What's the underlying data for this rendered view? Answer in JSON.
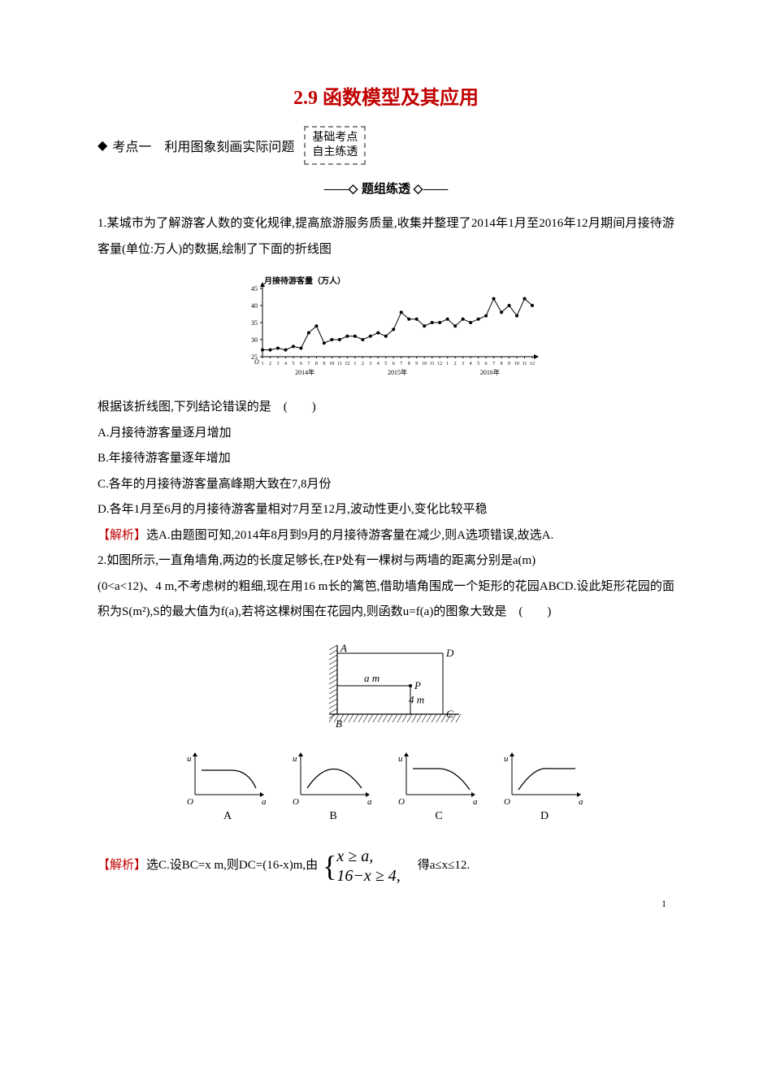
{
  "title": "2.9 函数模型及其应用",
  "section": {
    "diamond": "◆",
    "label": "考点一　利用图象刻画实际问题",
    "badge_line1": "基础考点",
    "badge_line2": "自主练透"
  },
  "separator": {
    "left": "——",
    "diamond": "◇",
    "text": " 题组练透 ",
    "right": "——"
  },
  "q1": {
    "text": "1.某城市为了解游客人数的变化规律,提高旅游服务质量,收集并整理了2014年1月至2016年12月期间月接待游客量(单位:万人)的数据,绘制了下面的折线图",
    "question": "根据该折线图,下列结论错误的是　(　　)",
    "optA": "A.月接待游客量逐月增加",
    "optB": "B.年接待游客量逐年增加",
    "optC": "C.各年的月接待游客量高峰期大致在7,8月份",
    "optD": "D.各年1月至6月的月接待游客量相对7月至12月,波动性更小,变化比较平稳",
    "answer_label": "【解析】",
    "answer": "选A.由题图可知,2014年8月到9月的月接待游客量在减少,则A选项错误,故选A."
  },
  "chart1": {
    "title": "月接待游客量（万人）",
    "y_ticks": [
      25,
      30,
      35,
      40,
      45
    ],
    "x_segments": [
      "1",
      "2",
      "3",
      "4",
      "5",
      "6",
      "7",
      "8",
      "9",
      "10",
      "11",
      "12",
      "1",
      "2",
      "3",
      "4",
      "5",
      "6",
      "7",
      "8",
      "9",
      "10",
      "11",
      "12",
      "1",
      "2",
      "3",
      "4",
      "5",
      "6",
      "7",
      "8",
      "9",
      "10",
      "11",
      "12"
    ],
    "year_labels": [
      "2014年",
      "2015年",
      "2016年"
    ],
    "line_color": "#000000",
    "marker_color": "#000000",
    "values": [
      27,
      27,
      27.5,
      27,
      28,
      27.5,
      32,
      34,
      29,
      30,
      30,
      31,
      31,
      30,
      31,
      32,
      31,
      33,
      38,
      36,
      36,
      34,
      35,
      35,
      36,
      34,
      36,
      35,
      36,
      37,
      42,
      38,
      40,
      37,
      42,
      40
    ],
    "background_color": "#ffffff",
    "axis_color": "#000000",
    "marker_size": 2
  },
  "q2": {
    "text1": "2.如图所示,一直角墙角,两边的长度足够长,在P处有一棵树与两墙的距离分别是a(m)",
    "text2": "(0<a<12)、4 m,不考虑树的粗细,现在用16 m长的篱笆,借助墙角围成一个矩形的花园ABCD.设此矩形花园的面积为S(m²),S的最大值为f(a),若将这棵树围在花园内,则函数u=f(a)的图象大致是　(　　)",
    "answer_label": "【解析】",
    "answer_pre": "选C.设BC=x m,则DC=(16-x)m,由",
    "answer_post": "　得a≤x≤12.",
    "brace_top": "x ≥ a,",
    "brace_bottom": "16−x ≥ 4,"
  },
  "diagram2": {
    "labels": {
      "A": "A",
      "B": "B",
      "C": "C",
      "D": "D",
      "P": "P",
      "am": "a m",
      "fourm": "4 m"
    },
    "hatch_color": "#000000",
    "line_color": "#000000",
    "font_style": "italic"
  },
  "options2": {
    "labels": [
      "A",
      "B",
      "C",
      "D"
    ],
    "u": "u",
    "a": "a",
    "o": "O",
    "axis_color": "#000000",
    "curve_color": "#000000"
  },
  "page_number": "1"
}
